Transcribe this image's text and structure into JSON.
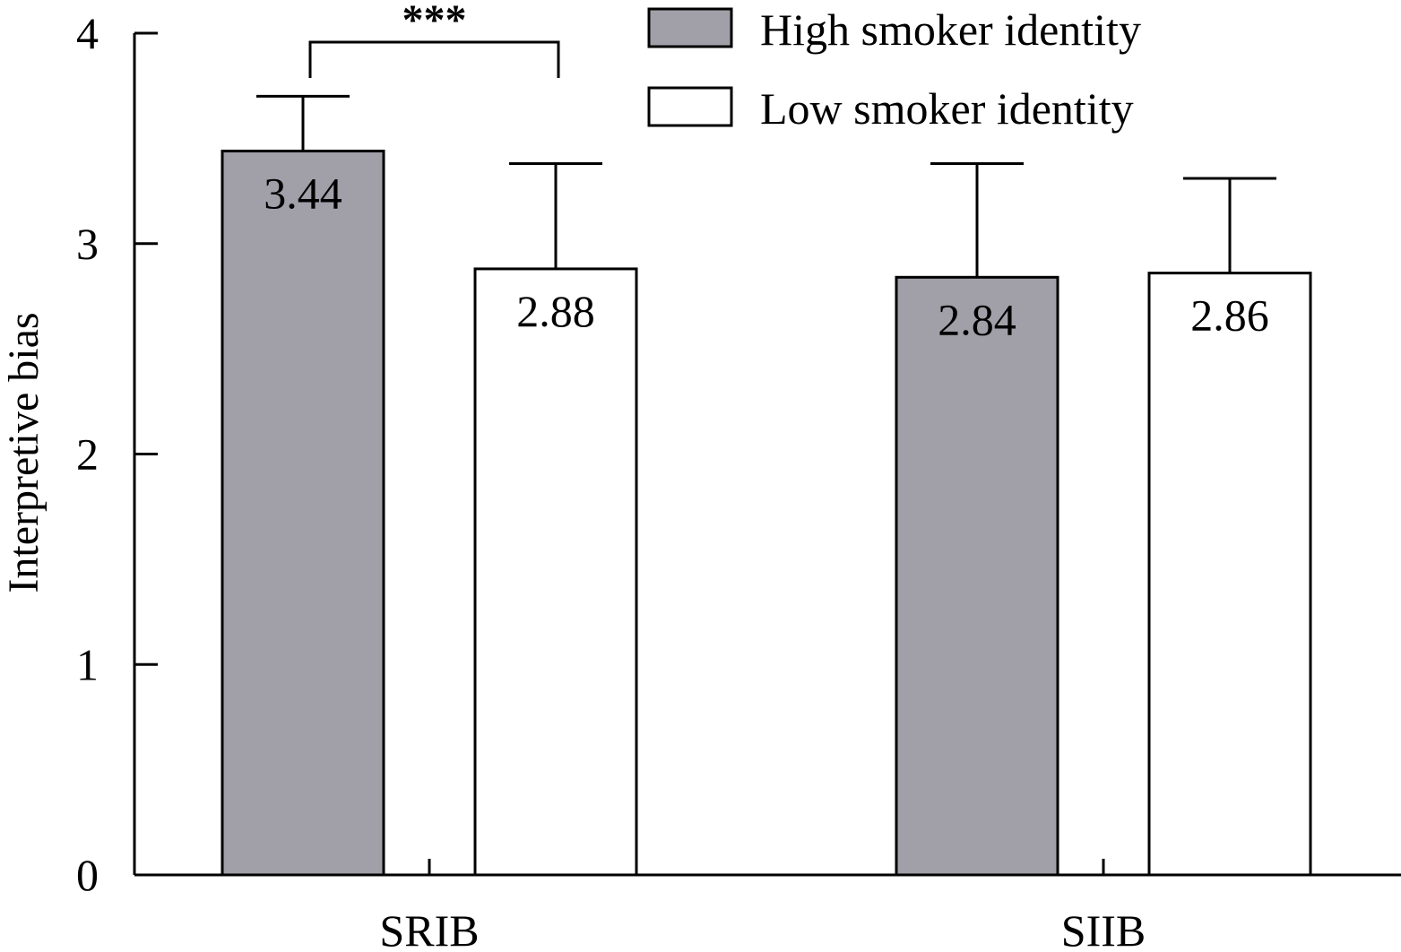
{
  "chart_data": {
    "type": "bar",
    "title": "",
    "xlabel": "",
    "ylabel": "Interpretive bias",
    "ylim": [
      0,
      4
    ],
    "yticks": [
      0,
      1,
      2,
      3,
      4
    ],
    "categories": [
      "SRIB",
      "SIIB"
    ],
    "series": [
      {
        "name": "High smoker identity",
        "values": [
          3.44,
          2.84
        ],
        "value_labels": [
          "3.44",
          "2.84"
        ],
        "error_upper": [
          3.7,
          3.38
        ],
        "color": "#a19fa8"
      },
      {
        "name": "Low smoker identity",
        "values": [
          2.88,
          2.86
        ],
        "value_labels": [
          "2.88",
          "2.86"
        ],
        "error_upper": [
          3.38,
          3.31
        ],
        "color": "#ffffff"
      }
    ],
    "grid": false,
    "legend_position": "top-right",
    "significance": {
      "category": "SRIB",
      "label": "***"
    }
  }
}
